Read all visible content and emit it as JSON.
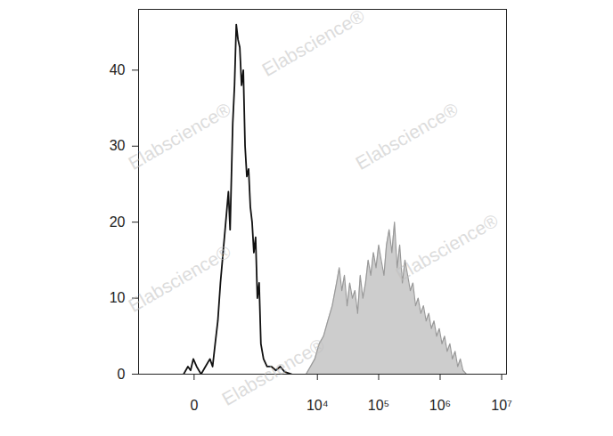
{
  "chart_data": {
    "type": "line",
    "watermark": "Elabscience®",
    "log": "x",
    "xlim": [
      -700,
      12000000
    ],
    "xticks": [
      0,
      {
        "value": 10000,
        "label": "10⁴"
      },
      {
        "value": 100000,
        "label": "10⁵"
      },
      {
        "value": 1000000,
        "label": "10⁶"
      },
      {
        "value": 10000000,
        "label": "10⁷"
      }
    ],
    "ylim": [
      0,
      48
    ],
    "yticks": [
      0,
      10,
      20,
      30,
      40
    ],
    "grid": false,
    "series": [
      {
        "type": "area",
        "color": "#c4c4c4",
        "x": [
          6520,
          7690,
          9060,
          10700,
          12600,
          14800,
          17500,
          20600,
          22800,
          25100,
          27700,
          30600,
          33800,
          37300,
          41100,
          45400,
          50100,
          55300,
          61100,
          67400,
          74400,
          82100,
          90600,
          100000,
          110000,
          122000,
          134000,
          148000,
          164000,
          181000,
          200000,
          220000,
          243000,
          268000,
          296000,
          327000,
          361000,
          398000,
          439000,
          485000,
          535000,
          591000,
          652000,
          719000,
          794000,
          877000,
          968000,
          1070000,
          1180000,
          1300000,
          1440000,
          1580000,
          1750000,
          1930000,
          2130000,
          2350000,
          2680000
        ],
        "values": [
          0,
          1,
          2,
          4,
          5,
          7,
          9,
          12,
          14,
          11,
          13,
          9,
          12,
          10,
          11,
          8,
          13,
          10,
          12,
          15,
          13,
          16,
          14,
          17,
          15,
          13,
          17,
          19,
          16,
          20,
          14,
          17,
          12,
          15,
          13,
          11,
          12,
          9,
          10,
          8,
          9,
          7,
          8,
          6,
          7,
          5,
          6,
          4,
          5,
          3,
          4,
          2,
          3,
          1,
          2,
          0.5,
          0
        ]
      },
      {
        "type": "line",
        "color": "#111111",
        "x": [
          -48,
          -26,
          -14,
          -3,
          10,
          30,
          53,
          81,
          100,
          120,
          143,
          168,
          196,
          227,
          261,
          285,
          325,
          354,
          385,
          418,
          453,
          491,
          531,
          574,
          620,
          669,
          721,
          777,
          836,
          900,
          968,
          1041,
          1118,
          1245,
          1434,
          1708,
          2031,
          2412,
          2861,
          3753
        ],
        "values": [
          0,
          1,
          0.5,
          2,
          1,
          0,
          1,
          2,
          1,
          4,
          7,
          12,
          16,
          20,
          24,
          19,
          33,
          38,
          46,
          44,
          43,
          38,
          40,
          30,
          26,
          27,
          22,
          20,
          16,
          18,
          10,
          12,
          4,
          2,
          1,
          1,
          0.5,
          1,
          0.3,
          0
        ]
      }
    ]
  }
}
